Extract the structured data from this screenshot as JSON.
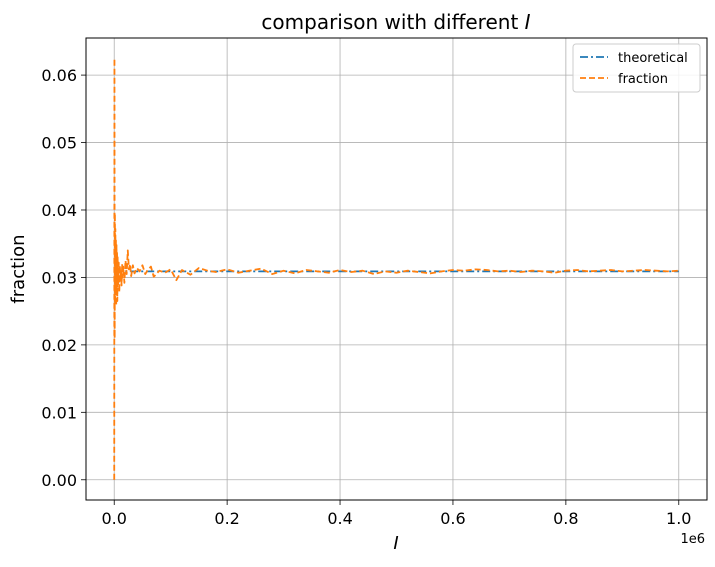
{
  "chart_data": {
    "type": "line",
    "title": "comparison with different",
    "title_symbol": "I",
    "xlabel": "I",
    "ylabel": "fraction",
    "x_offset_label": "1e6",
    "xlim": [
      -50000,
      1050000
    ],
    "ylim": [
      -0.003,
      0.0655
    ],
    "xticks": [
      0,
      200000,
      400000,
      600000,
      800000,
      1000000
    ],
    "xtick_labels": [
      "0.0",
      "0.2",
      "0.4",
      "0.6",
      "0.8",
      "1.0"
    ],
    "yticks": [
      0,
      0.01,
      0.02,
      0.03,
      0.04,
      0.05,
      0.06
    ],
    "ytick_labels": [
      "0.00",
      "0.01",
      "0.02",
      "0.03",
      "0.04",
      "0.05",
      "0.06"
    ],
    "grid": true,
    "legend_position": "top-right",
    "series": [
      {
        "name": "theoretical",
        "color": "#1f77b4",
        "style": "dashdot",
        "x": [
          0,
          1000000
        ],
        "y": [
          0.0309,
          0.0309
        ]
      },
      {
        "name": "fraction",
        "color": "#ff7f0e",
        "style": "dashed",
        "x": [
          0,
          400,
          800,
          1200,
          1600,
          2000,
          2500,
          3000,
          3500,
          4000,
          4500,
          5000,
          5500,
          6000,
          7000,
          8000,
          9000,
          10000,
          11000,
          12000,
          13000,
          14000,
          15000,
          16000,
          18000,
          20000,
          22000,
          24000,
          26000,
          28000,
          30000,
          33000,
          36000,
          40000,
          45000,
          50000,
          55000,
          60000,
          65000,
          70000,
          80000,
          90000,
          100000,
          110000,
          120000,
          135000,
          150000,
          165000,
          180000,
          200000,
          220000,
          240000,
          260000,
          280000,
          300000,
          320000,
          340000,
          360000,
          380000,
          400000,
          420000,
          440000,
          460000,
          480000,
          500000,
          520000,
          540000,
          560000,
          580000,
          600000,
          620000,
          640000,
          660000,
          680000,
          700000,
          720000,
          740000,
          760000,
          780000,
          800000,
          820000,
          840000,
          860000,
          880000,
          900000,
          920000,
          940000,
          960000,
          980000,
          1000000
        ],
        "y": [
          0.0,
          0.0625,
          0.021,
          0.0395,
          0.026,
          0.0372,
          0.0275,
          0.0355,
          0.0258,
          0.0348,
          0.0282,
          0.0338,
          0.0265,
          0.033,
          0.029,
          0.0322,
          0.0278,
          0.0318,
          0.0295,
          0.0312,
          0.0288,
          0.032,
          0.03,
          0.0316,
          0.0292,
          0.0325,
          0.0305,
          0.034,
          0.0312,
          0.032,
          0.0302,
          0.0318,
          0.0306,
          0.0314,
          0.0309,
          0.0318,
          0.0305,
          0.0312,
          0.0316,
          0.0301,
          0.031,
          0.0307,
          0.0312,
          0.0296,
          0.0311,
          0.0304,
          0.0314,
          0.031,
          0.0308,
          0.0312,
          0.0307,
          0.031,
          0.0313,
          0.0305,
          0.031,
          0.0306,
          0.0311,
          0.0309,
          0.0307,
          0.0311,
          0.0308,
          0.031,
          0.0305,
          0.0309,
          0.0307,
          0.031,
          0.0308,
          0.0306,
          0.0309,
          0.0311,
          0.031,
          0.0312,
          0.0311,
          0.0309,
          0.031,
          0.0308,
          0.031,
          0.0309,
          0.0307,
          0.031,
          0.0311,
          0.0309,
          0.031,
          0.0311,
          0.0309,
          0.031,
          0.0311,
          0.031,
          0.0309,
          0.031
        ]
      }
    ]
  }
}
